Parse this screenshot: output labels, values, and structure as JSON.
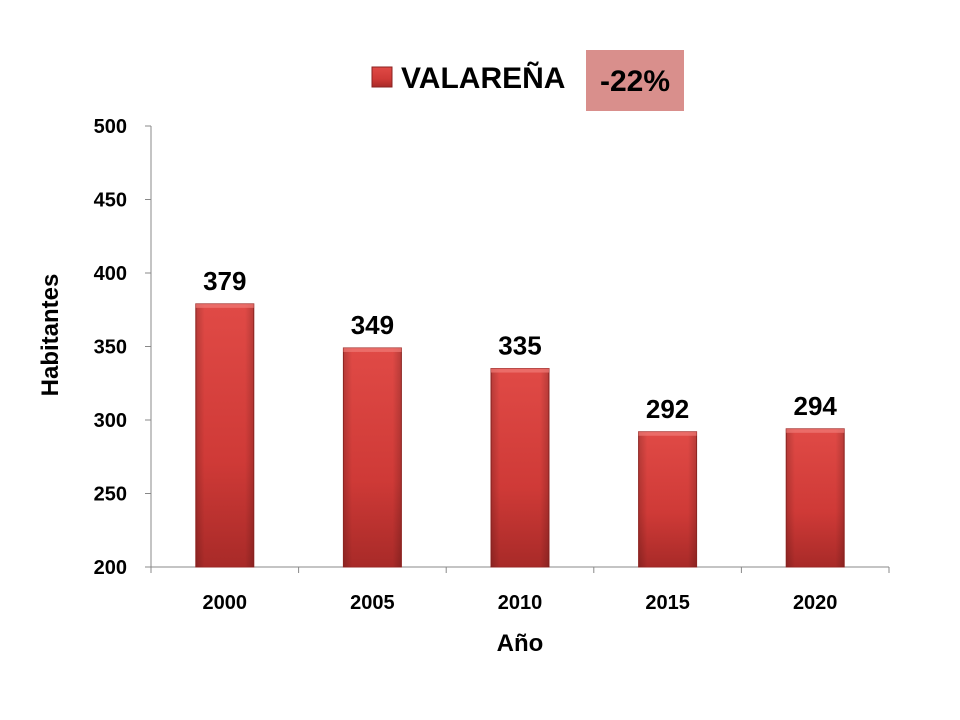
{
  "chart_data": {
    "type": "bar",
    "categories": [
      "2000",
      "2005",
      "2010",
      "2015",
      "2020"
    ],
    "series": [
      {
        "name": "VALAREÑA",
        "values": [
          379,
          349,
          335,
          292,
          294
        ],
        "color": "#d43c3a"
      }
    ],
    "xlabel": "Año",
    "ylabel": "Habitantes",
    "ylim": [
      200,
      500
    ],
    "yticks": [
      200,
      250,
      300,
      350,
      400,
      450,
      500
    ],
    "data_labels": [
      "379",
      "349",
      "335",
      "292",
      "294"
    ],
    "annotation": {
      "text": "-22%",
      "background": "#d98f8c"
    },
    "legend_position": "top",
    "grid": false
  }
}
